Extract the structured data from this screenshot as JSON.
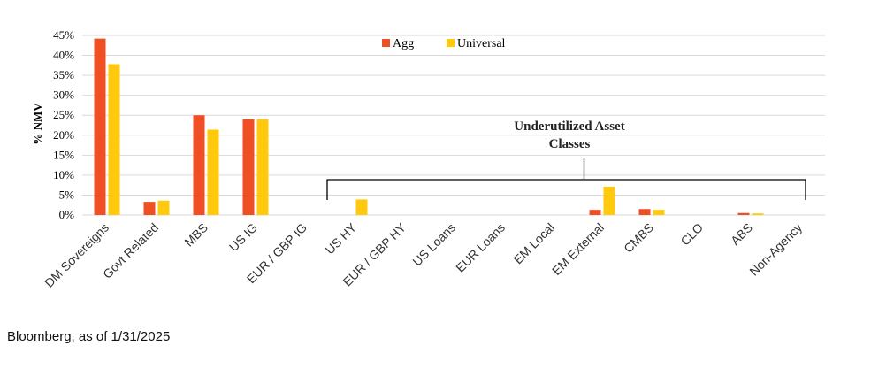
{
  "chart_data": {
    "type": "bar",
    "ylabel": "% NMV",
    "ylim": [
      0,
      45
    ],
    "ytick_step": 5,
    "ytick_suffix": "%",
    "grid": true,
    "legend_position": "top-center",
    "categories": [
      "DM Sovereigns",
      "Govt Related",
      "MBS",
      "US IG",
      "EUR / GBP IG",
      "US HY",
      "EUR / GBP HY",
      "US Loans",
      "EUR Loans",
      "EM Local",
      "EM External",
      "CMBS",
      "CLO",
      "ABS",
      "Non-Agency"
    ],
    "series": [
      {
        "name": "Agg",
        "color": "#f04e23",
        "values": [
          44.2,
          3.3,
          25,
          24,
          0,
          0,
          0,
          0,
          0,
          0,
          1.3,
          1.5,
          0,
          0.5,
          0
        ]
      },
      {
        "name": "Universal",
        "color": "#ffc90e",
        "values": [
          37.8,
          3.6,
          21.4,
          24,
          0,
          3.9,
          0,
          0,
          0,
          0,
          7.1,
          1.3,
          0,
          0.4,
          0
        ]
      }
    ],
    "annotation": {
      "lines": [
        "Underutilized Asset",
        "Classes"
      ],
      "from_category": "US HY",
      "to_category": "Non-Agency"
    }
  },
  "source_text": "Bloomberg, as of 1/31/2025"
}
